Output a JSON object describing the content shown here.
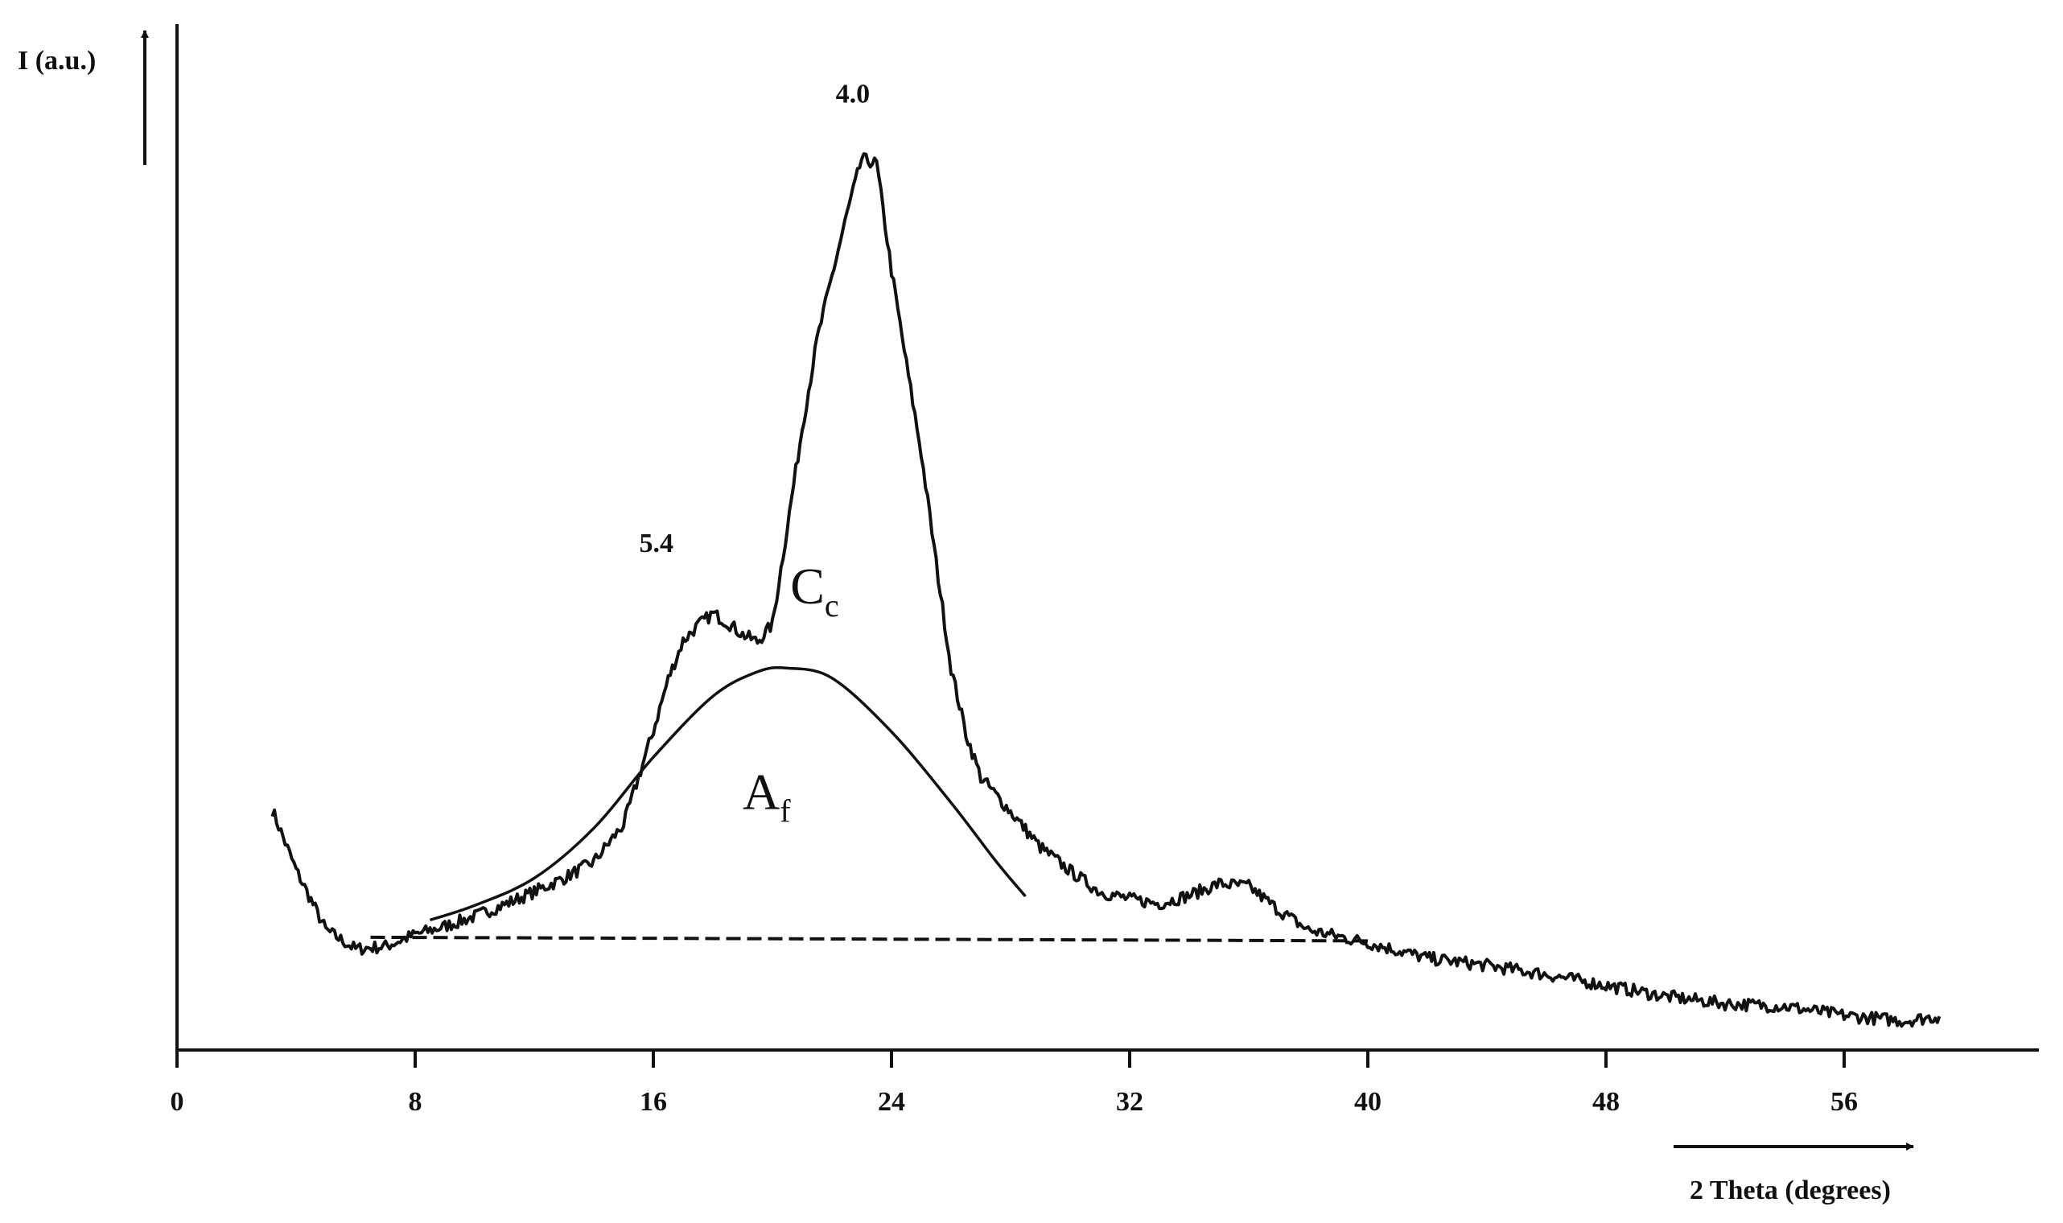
{
  "chart_data": {
    "type": "line",
    "xlabel": "2 Theta (degrees)",
    "ylabel": "I (a.u.)",
    "xlim": [
      0,
      62
    ],
    "ylim": [
      0,
      100
    ],
    "x_ticks": [
      0,
      8,
      16,
      24,
      32,
      40,
      48,
      56
    ],
    "grid": false,
    "series": [
      {
        "role": "diffraction-pattern",
        "x": [
          3.2,
          4.0,
          5.0,
          6.0,
          7.0,
          8.0,
          9.0,
          10.0,
          11.0,
          12.0,
          13.0,
          14.0,
          15.0,
          16.0,
          16.5,
          17.0,
          17.5,
          18.0,
          18.5,
          19.0,
          19.5,
          20.0,
          20.5,
          21.0,
          21.5,
          22.0,
          22.5,
          23.0,
          23.5,
          24.0,
          24.5,
          25.0,
          25.5,
          26.0,
          26.5,
          27.0,
          28.0,
          29.0,
          30.0,
          31.0,
          32.0,
          33.0,
          34.0,
          35.0,
          36.0,
          37.0,
          38.0,
          40.0,
          42.0,
          44.0,
          46.0,
          48.0,
          50.0,
          52.0,
          54.0,
          56.0,
          58.0,
          59.2
        ],
        "y": [
          26.4,
          19.8,
          13.2,
          11.1,
          11.4,
          12.7,
          13.6,
          14.7,
          16.0,
          17.4,
          18.9,
          20.7,
          24.8,
          35.1,
          40.8,
          45.0,
          46.7,
          48.0,
          47.0,
          45.7,
          44.9,
          46.8,
          57.5,
          68.4,
          78.1,
          85.1,
          91.9,
          98.0,
          97.5,
          85.7,
          75.5,
          65.6,
          53.6,
          42.0,
          34.8,
          30.0,
          26.2,
          22.3,
          19.7,
          17.4,
          16.6,
          16.1,
          17.0,
          18.3,
          18.0,
          15.4,
          13.2,
          11.8,
          10.1,
          9.3,
          8.3,
          7.1,
          5.9,
          5.1,
          4.8,
          3.8,
          3.2,
          3.7
        ]
      },
      {
        "role": "amorphous-halo",
        "x": [
          8.5,
          10,
          12,
          14,
          16,
          18,
          19.5,
          20.5,
          22,
          24,
          26,
          27.5,
          28.5
        ],
        "y": [
          14.3,
          15.9,
          18.9,
          24.4,
          32.2,
          38.9,
          41.6,
          42.0,
          40.9,
          35.0,
          27.2,
          20.8,
          16.9
        ]
      },
      {
        "role": "baseline",
        "x": [
          6.5,
          40
        ],
        "y": [
          12.4,
          12.0
        ]
      }
    ],
    "annotations": [
      {
        "text": "4.0",
        "x": 22.7,
        "y": 104.2
      },
      {
        "text": "5.4",
        "x": 16.1,
        "y": 54.8
      }
    ],
    "regions": [
      {
        "main": "C",
        "sub": "c",
        "x": 20.6,
        "y": 49.1
      },
      {
        "main": "A",
        "sub": "f",
        "x": 19.0,
        "y": 26.5
      }
    ]
  }
}
